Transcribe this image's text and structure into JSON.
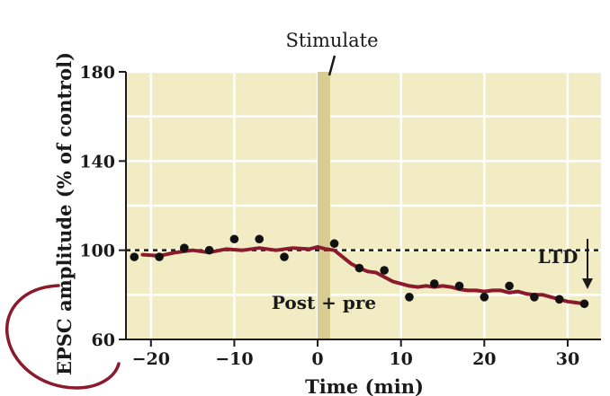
{
  "chart_data": {
    "type": "scatter",
    "title": "",
    "xlabel": "Time (min)",
    "ylabel": "EPSC amplitude (% of control)",
    "xlim": [
      -23,
      34
    ],
    "ylim": [
      60,
      180
    ],
    "x_ticks": [
      -20,
      -10,
      0,
      10,
      20,
      30
    ],
    "x_tick_labels": [
      "−20",
      "−10",
      "0",
      "10",
      "20",
      "30"
    ],
    "y_ticks": [
      60,
      100,
      140,
      180
    ],
    "y_tick_labels": [
      "60",
      "100",
      "140",
      "180"
    ],
    "grid": true,
    "background_color": "#f1ecc3",
    "stimulation": {
      "label": "Stimulate",
      "from": 0,
      "to": 1.5,
      "color": "#d8cc92"
    },
    "baseline": {
      "y": 100,
      "style": "dashed"
    },
    "annotations": [
      {
        "text": "Post + pre"
      },
      {
        "text": "LTD"
      }
    ],
    "series": [
      {
        "kind": "points",
        "color": "#111111",
        "points": [
          [
            -22,
            97
          ],
          [
            -19,
            97
          ],
          [
            -16,
            101
          ],
          [
            -13,
            100
          ],
          [
            -10,
            105
          ],
          [
            -7,
            105
          ],
          [
            -4,
            97
          ],
          [
            2,
            103
          ],
          [
            5,
            92
          ],
          [
            8,
            91
          ],
          [
            11,
            79
          ],
          [
            14,
            85
          ],
          [
            17,
            84
          ],
          [
            20,
            79
          ],
          [
            23,
            84
          ],
          [
            26,
            79
          ],
          [
            29,
            78
          ],
          [
            32,
            76
          ]
        ]
      },
      {
        "kind": "line",
        "color": "#8b1a2c",
        "points": [
          [
            -21,
            98
          ],
          [
            -19,
            97.5
          ],
          [
            -17,
            99
          ],
          [
            -15,
            100
          ],
          [
            -13,
            99
          ],
          [
            -11,
            100.5
          ],
          [
            -9,
            100
          ],
          [
            -7,
            101
          ],
          [
            -5,
            100
          ],
          [
            -3,
            101
          ],
          [
            -1,
            100.5
          ],
          [
            0,
            101.5
          ],
          [
            1,
            100.5
          ],
          [
            2,
            100
          ],
          [
            3,
            97
          ],
          [
            4,
            94
          ],
          [
            5,
            92
          ],
          [
            6,
            90.5
          ],
          [
            7,
            90
          ],
          [
            8,
            88
          ],
          [
            9,
            86
          ],
          [
            10,
            85
          ],
          [
            11,
            84
          ],
          [
            12,
            83.5
          ],
          [
            13,
            84
          ],
          [
            14,
            83.5
          ],
          [
            15,
            84
          ],
          [
            16,
            83.5
          ],
          [
            17,
            82.5
          ],
          [
            18,
            82
          ],
          [
            19,
            82
          ],
          [
            20,
            81.5
          ],
          [
            21,
            82
          ],
          [
            22,
            82
          ],
          [
            23,
            81
          ],
          [
            24,
            81.5
          ],
          [
            25,
            80.5
          ],
          [
            26,
            80
          ],
          [
            27,
            80
          ],
          [
            28,
            79
          ],
          [
            29,
            78
          ],
          [
            30,
            77
          ],
          [
            31,
            76.5
          ],
          [
            32,
            76
          ]
        ]
      }
    ]
  }
}
